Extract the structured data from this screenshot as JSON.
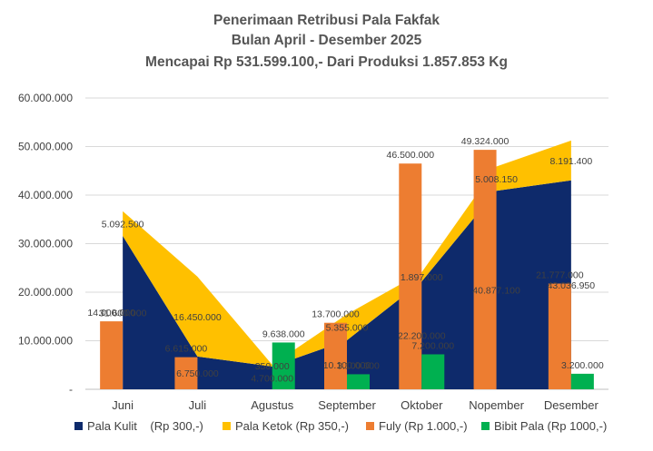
{
  "title_lines": [
    "Penerimaan Retribusi Pala Fakfak",
    "Bulan April - Desember 2025",
    "Mencapai Rp 531.599.100,- Dari Produksi  1.857.853 Kg"
  ],
  "chart_data": {
    "type": "area",
    "categories": [
      "Juni",
      "Juli",
      "Agustus",
      "September",
      "Oktober",
      "Nopember",
      "Desember"
    ],
    "y_ticks": [
      "-",
      "10.000.000",
      "20.000.000",
      "30.000.000",
      "40.000.000",
      "50.000.000",
      "60.000.000"
    ],
    "ylim": [
      0,
      60000000
    ],
    "grid": true,
    "legend_position": "bottom",
    "stacked_areas": [
      {
        "name": "Pala Kulit    (Rp 300,-)",
        "color": "#0e2a6b",
        "values": [
          31600000,
          6750000,
          4700000,
          10100000,
          22200000,
          40877100,
          43036950
        ],
        "labels": [
          "31.600.000",
          "6.750.000",
          "4.700.000",
          "10.100.000",
          "22.200.000",
          "40.877.100",
          "43.036.950"
        ]
      },
      {
        "name": "Pala Ketok (Rp 350,-)",
        "color": "#ffc000",
        "values": [
          5092500,
          16450000,
          350000,
          5355000,
          1897000,
          5008150,
          8191400
        ],
        "labels": [
          "5.092.500",
          "16.450.000",
          "350.000",
          "5.355.000",
          "1.897.000",
          "5.008.150",
          "8.191.400"
        ]
      }
    ],
    "bars": [
      {
        "name": "Fuly (Rp 1.000,-)",
        "color": "#ed7d31",
        "values": [
          14000000,
          6615000,
          null,
          13700000,
          46500000,
          49324000,
          21777000
        ],
        "labels": [
          "14.000.000",
          "6.615.000",
          "",
          "13.700.000",
          "46.500.000",
          "49.324.000",
          "21.777.000"
        ]
      },
      {
        "name": "Bibit Pala (Rp 1000,-)",
        "color": "#00b050",
        "values": [
          null,
          null,
          9638000,
          3100000,
          7200000,
          null,
          3200000
        ],
        "labels": [
          "",
          "",
          "9.638.000",
          "3.100.000",
          "7.200.000",
          "",
          "3.200.000"
        ]
      }
    ]
  }
}
